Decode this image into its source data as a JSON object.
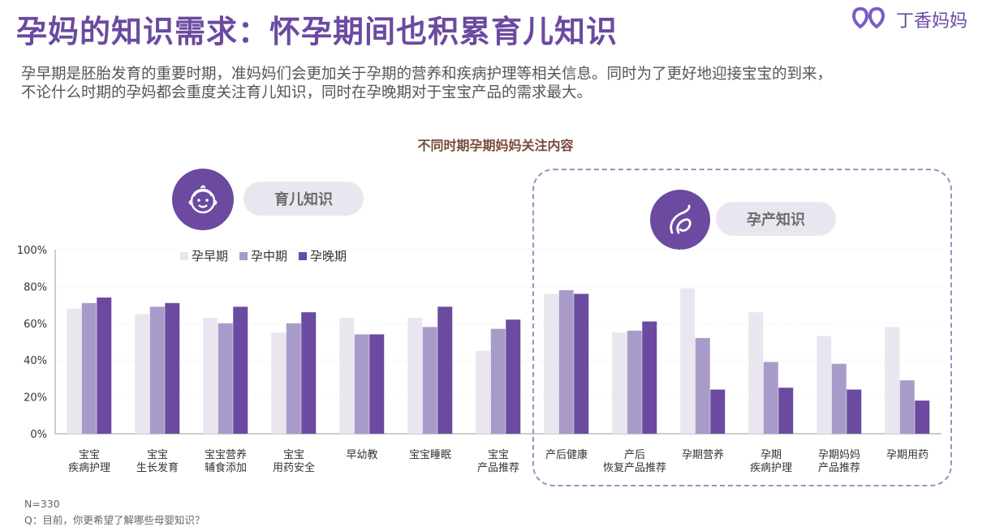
{
  "header": {
    "title": "孕妈的知识需求：怀孕期间也积累育儿知识",
    "logo_text": "丁香妈妈",
    "subtitle_line1": "孕早期是胚胎发育的重要时期，准妈妈们会更加关于孕期的营养和疾病护理等相关信息。同时为了更好地迎接宝宝的到来，",
    "subtitle_line2": "不论什么时期的孕妈都会重度关注育儿知识，同时在孕晚期对于宝宝产品的需求最大。"
  },
  "groups": {
    "childcare_label": "育儿知识",
    "childcare_icon": "baby-face-icon",
    "pregnancy_label": "孕产知识",
    "pregnancy_icon": "pregnant-woman-icon"
  },
  "footer": {
    "sample": "N=330",
    "question": "Q：目前，你更希望了解哪些母婴知识？"
  },
  "colors": {
    "accent": "#6b4aa0",
    "early": "#e9e6f0",
    "mid": "#a99bc9",
    "late": "#6b4aa0"
  },
  "chart_data": {
    "type": "bar",
    "title": "不同时期孕期妈妈关注内容",
    "xlabel": "",
    "ylabel": "",
    "ylim": [
      0,
      100
    ],
    "yticks": [
      "0%",
      "20%",
      "40%",
      "60%",
      "80%",
      "100%"
    ],
    "grid": true,
    "legend_position": "top-left",
    "categories": [
      [
        "宝宝",
        "疾病护理"
      ],
      [
        "宝宝",
        "生长发育"
      ],
      [
        "宝宝营养",
        "辅食添加"
      ],
      [
        "宝宝",
        "用药安全"
      ],
      [
        "早幼教"
      ],
      [
        "宝宝睡眠"
      ],
      [
        "宝宝",
        "产品推荐"
      ],
      [
        "产后健康"
      ],
      [
        "产后",
        "恢复产品推荐"
      ],
      [
        "孕期营养"
      ],
      [
        "孕期",
        "疾病护理"
      ],
      [
        "孕期妈妈",
        "产品推荐"
      ],
      [
        "孕期用药"
      ]
    ],
    "series": [
      {
        "name": "孕早期",
        "color": "#e9e6f0",
        "values": [
          68,
          65,
          63,
          55,
          63,
          63,
          45,
          76,
          55,
          79,
          66,
          53,
          58
        ]
      },
      {
        "name": "孕中期",
        "color": "#a99bc9",
        "values": [
          71,
          69,
          60,
          60,
          54,
          58,
          57,
          78,
          56,
          52,
          39,
          38,
          29
        ]
      },
      {
        "name": "孕晚期",
        "color": "#6b4aa0",
        "values": [
          74,
          71,
          69,
          66,
          54,
          69,
          62,
          76,
          61,
          24,
          25,
          24,
          18
        ]
      }
    ]
  }
}
